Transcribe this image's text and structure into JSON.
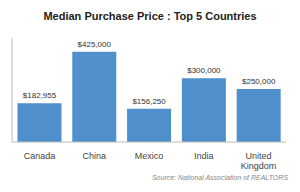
{
  "chart_data": {
    "type": "bar",
    "title": "Median Purchase Price :  Top 5 Countries",
    "categories": [
      "Canada",
      "China",
      "Mexico",
      "India",
      "United Kingdom"
    ],
    "values": [
      182955,
      425000,
      156250,
      300000,
      250000
    ],
    "value_labels": [
      "$182,955",
      "$425,000",
      "$156,250",
      "$300,000",
      "$250,000"
    ],
    "color": "#4f8fcc",
    "ylim": [
      0,
      490000
    ],
    "data_labels": true,
    "tick_labels": "x",
    "annotation": "Source: National Association of REALTORS"
  }
}
